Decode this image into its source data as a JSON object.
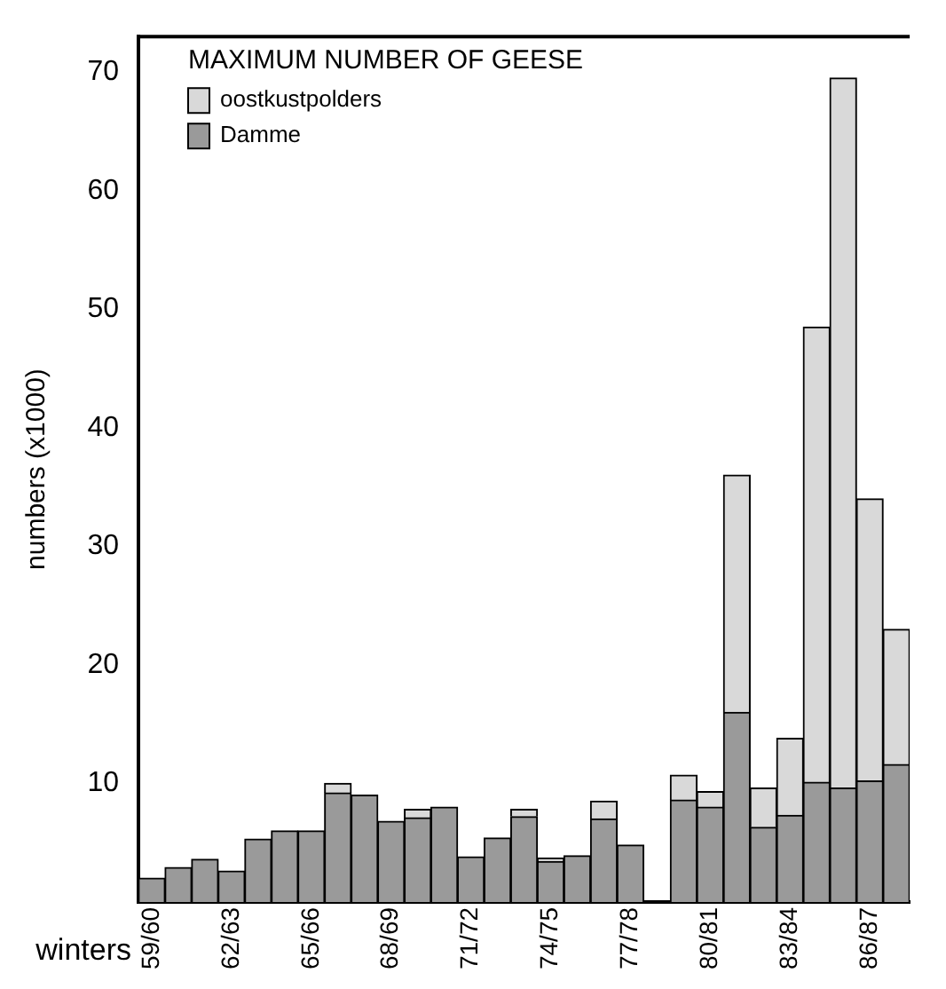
{
  "chart_data": {
    "type": "bar",
    "legend_title": "MAXIMUM NUMBER OF GEESE",
    "ylabel": "numbers (x1000)",
    "xlabel": "winters",
    "categories": [
      "59/60",
      null,
      null,
      "62/63",
      null,
      null,
      "65/66",
      null,
      null,
      "68/69",
      null,
      null,
      "71/72",
      null,
      null,
      "74/75",
      null,
      null,
      "77/78",
      null,
      null,
      "80/81",
      null,
      null,
      "83/84",
      null,
      null,
      "86/87",
      null
    ],
    "stacked": true,
    "series": [
      {
        "name": "Damme",
        "color": "#9a9a9a",
        "values": [
          2.0,
          2.9,
          3.6,
          2.6,
          5.3,
          6.0,
          6.0,
          9.2,
          9.0,
          6.8,
          7.1,
          8.0,
          3.8,
          5.4,
          7.2,
          3.4,
          3.9,
          7.0,
          4.8,
          null,
          8.6,
          8.0,
          16.0,
          6.3,
          7.3,
          10.1,
          9.6,
          10.2,
          11.6
        ]
      },
      {
        "name": "oostkustpolders",
        "color": "#d9d9d9",
        "values": [
          null,
          null,
          null,
          null,
          null,
          null,
          null,
          0.8,
          null,
          null,
          0.7,
          null,
          null,
          null,
          0.6,
          0.3,
          null,
          1.5,
          null,
          null,
          2.1,
          1.3,
          20.0,
          3.3,
          6.5,
          38.4,
          59.9,
          23.8,
          11.4
        ]
      }
    ],
    "ylim": [
      0,
      73
    ],
    "yticks": [
      10,
      20,
      30,
      40,
      50,
      60,
      70
    ],
    "grid": false,
    "legend": "top left"
  }
}
